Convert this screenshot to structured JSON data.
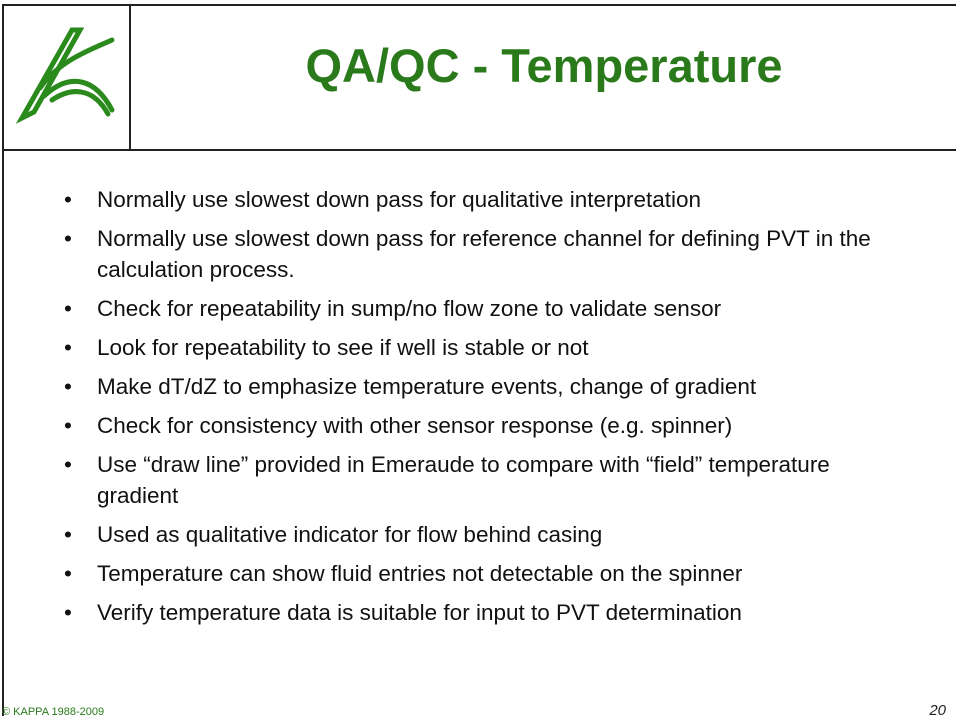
{
  "header": {
    "title": "QA/QC - Temperature"
  },
  "bullets": [
    "Normally use slowest down pass for qualitative interpretation",
    "Normally use slowest down pass for reference channel for defining PVT in the calculation process.",
    "Check for repeatability in sump/no flow zone to validate sensor",
    "Look for repeatability to see if well is stable or not",
    "Make dT/dZ to emphasize temperature events, change of gradient",
    "Check for consistency with other sensor response (e.g. spinner)",
    "Use “draw line” provided in Emeraude to compare with “field” temperature gradient",
    "Used as qualitative indicator for flow behind casing",
    "Temperature can show fluid entries not detectable on the spinner",
    "Verify temperature data is suitable for input to PVT determination"
  ],
  "footer": {
    "copyright": "© KAPPA 1988-2009",
    "page": "20"
  }
}
